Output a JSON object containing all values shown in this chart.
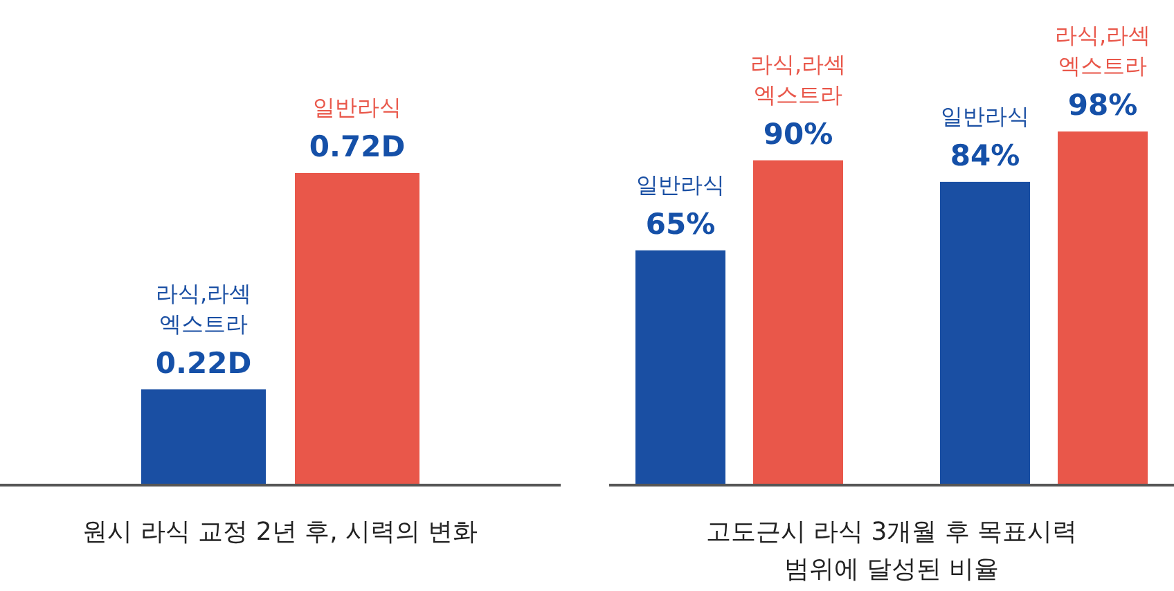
{
  "chart_data": [
    {
      "type": "bar",
      "title": "원시 라식 교정 2년 후, 시력의 변화",
      "categories": [
        null
      ],
      "series": [
        {
          "name": "라식,라섹 엑스트라",
          "color": "#1a4fa3",
          "values": [
            0.22
          ],
          "value_labels": [
            "0.22D"
          ]
        },
        {
          "name": "일반라식",
          "color": "#e9574a",
          "values": [
            0.72
          ],
          "value_labels": [
            "0.72D"
          ]
        }
      ]
    },
    {
      "type": "bar",
      "title": "고도근시 라식 3개월 후 목표시력 범위에 달성된 비율",
      "categories": [
        null,
        null
      ],
      "series": [
        {
          "name": "일반라식",
          "color": "#1a4fa3",
          "values": [
            65,
            84
          ],
          "value_labels": [
            "65%",
            "84%"
          ]
        },
        {
          "name": "라식,라섹 엑스트라",
          "color": "#e9574a",
          "values": [
            90,
            98
          ],
          "value_labels": [
            "90%",
            "98%"
          ]
        }
      ]
    }
  ]
}
